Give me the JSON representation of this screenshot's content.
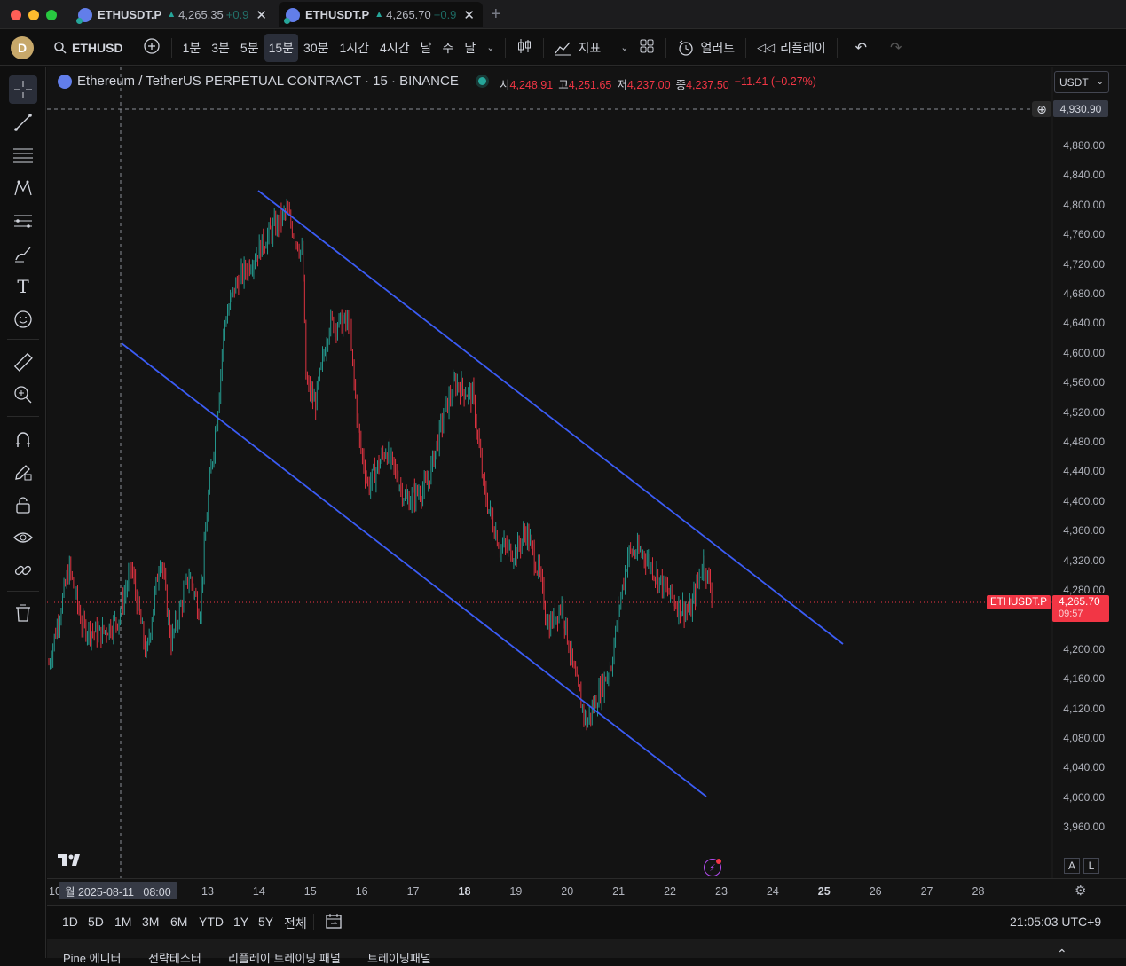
{
  "tabs": [
    {
      "symbol": "ETHUSDT.P",
      "arrow": "▲",
      "price": "4,265.35",
      "change": "+0.9"
    },
    {
      "symbol": "ETHUSDT.P",
      "arrow": "▲",
      "price": "4,265.70",
      "change": "+0.9"
    }
  ],
  "toolbar": {
    "avatar": "D",
    "symbol": "ETHUSD",
    "intervals": [
      "1분",
      "3분",
      "5분",
      "15분",
      "30분",
      "1시간",
      "4시간",
      "날",
      "주",
      "달"
    ],
    "active_interval": "15분",
    "indicators_label": "지표",
    "alert_label": "얼러트",
    "replay_label": "리플레이"
  },
  "legend": {
    "title": "Ethereum / TetherUS PERPETUAL CONTRACT · 15 · BINANCE",
    "o_label": "시",
    "o": "4,248.91",
    "h_label": "고",
    "h": "4,251.65",
    "l_label": "저",
    "l": "4,237.00",
    "c_label": "종",
    "c": "4,237.50",
    "change": "−11.41 (−0.27%)",
    "currency": "USDT"
  },
  "price_axis": {
    "labels": [
      "4,880.00",
      "4,840.00",
      "4,800.00",
      "4,760.00",
      "4,720.00",
      "4,680.00",
      "4,640.00",
      "4,600.00",
      "4,560.00",
      "4,520.00",
      "4,480.00",
      "4,440.00",
      "4,400.00",
      "4,360.00",
      "4,320.00",
      "4,280.00",
      "4,200.00",
      "4,160.00",
      "4,120.00",
      "4,080.00",
      "4,040.00",
      "4,000.00",
      "3,960.00"
    ],
    "crosshair_price": "4,930.90",
    "last_symbol": "ETHUSDT.P",
    "last_price": "4,265.70",
    "countdown": "09:57"
  },
  "time_axis": {
    "crosshair_label": "월 2025-08-11   08:00",
    "cut_label": "10",
    "labels": [
      "13",
      "14",
      "15",
      "16",
      "17",
      "18",
      "19",
      "20",
      "21",
      "22",
      "23",
      "24",
      "25",
      "26",
      "27",
      "28"
    ],
    "bold": [
      "18",
      "25"
    ]
  },
  "bottom": {
    "ranges": [
      "1D",
      "5D",
      "1M",
      "3M",
      "6M",
      "YTD",
      "1Y",
      "5Y",
      "전체"
    ],
    "clock": "21:05:03 UTC+9",
    "scale_a": "A",
    "scale_l": "L"
  },
  "panels": [
    "Pine 에디터",
    "전략테스터",
    "리플레이 트레이딩 패널",
    "트레이딩패널"
  ],
  "colors": {
    "up": "#26a69a",
    "down": "#f23645",
    "channel": "#3b5cf5",
    "bg": "#131313"
  }
}
